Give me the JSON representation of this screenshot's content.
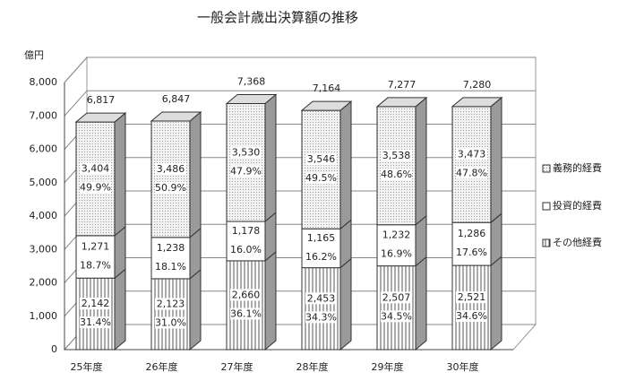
{
  "chart_data": {
    "type": "bar3d_stacked",
    "title": "一般会計歳出決算額の推移",
    "y_unit": "億円",
    "categories": [
      "25年度",
      "26年度",
      "27年度",
      "28年度",
      "29年度",
      "30年度"
    ],
    "series": [
      {
        "name": "その他経費",
        "color": "#ffffff",
        "pattern": "vertical-lines",
        "values": [
          2142,
          2123,
          2660,
          2453,
          2507,
          2521
        ],
        "value_labels": [
          "2,142",
          "2,123",
          "2,660",
          "2,453",
          "2,507",
          "2,521"
        ],
        "share_labels": [
          "31.4%",
          "31.0%",
          "36.1%",
          "34.3%",
          "34.5%",
          "34.6%"
        ]
      },
      {
        "name": "投資的経費",
        "color": "#ffffff",
        "pattern": "none",
        "values": [
          1271,
          1238,
          1178,
          1165,
          1232,
          1286
        ],
        "value_labels": [
          "1,271",
          "1,238",
          "1,178",
          "1,165",
          "1,232",
          "1,286"
        ],
        "share_labels": [
          "18.7%",
          "18.1%",
          "16.0%",
          "16.2%",
          "16.9%",
          "17.6%"
        ]
      },
      {
        "name": "義務的経費",
        "color": "#e4e4e4",
        "pattern": "dots",
        "values": [
          3404,
          3486,
          3530,
          3546,
          3538,
          3473
        ],
        "value_labels": [
          "3,404",
          "3,486",
          "3,530",
          "3,546",
          "3,538",
          "3,473"
        ],
        "share_labels": [
          "49.9%",
          "50.9%",
          "47.9%",
          "49.5%",
          "48.6%",
          "47.8%"
        ]
      }
    ],
    "totals": [
      6817,
      6847,
      7368,
      7164,
      7277,
      7280
    ],
    "total_labels": [
      "6,817",
      "6,847",
      "7,368",
      "7,164",
      "7,277",
      "7,280"
    ],
    "ylim": [
      0,
      8000
    ],
    "yticks": [
      0,
      {
        "value": 1000,
        "label": "1,000"
      },
      {
        "value": 2000,
        "label": "2,000"
      },
      {
        "value": 3000,
        "label": "3,000"
      },
      {
        "value": 4000,
        "label": "4,000"
      },
      {
        "value": 5000,
        "label": "5,000"
      },
      {
        "value": 6000,
        "label": "6,000"
      },
      {
        "value": 7000,
        "label": "7,000"
      },
      {
        "value": 8000,
        "label": "8,000"
      }
    ],
    "grid": true,
    "legend": "right"
  }
}
